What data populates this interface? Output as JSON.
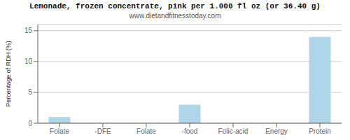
{
  "chart_data": {
    "type": "bar",
    "title": "Lemonade, frozen concentrate, pink per 1.000 fl oz (or 36.40 g)",
    "subtitle": "www.dietandfitnesstoday.com",
    "categories": [
      "Folate",
      "-DFE",
      "Folate",
      "-food",
      "Folic-acid",
      "Energy",
      "Protein"
    ],
    "values": [
      1.0,
      0.0,
      0.0,
      3.0,
      0.0,
      0.0,
      14.0
    ],
    "color": "#aed6e8",
    "ylabel": "Percentage of RDH (%)",
    "ylim": [
      0,
      16
    ],
    "yticks": [
      0,
      5,
      10,
      15
    ],
    "grid": true
  }
}
